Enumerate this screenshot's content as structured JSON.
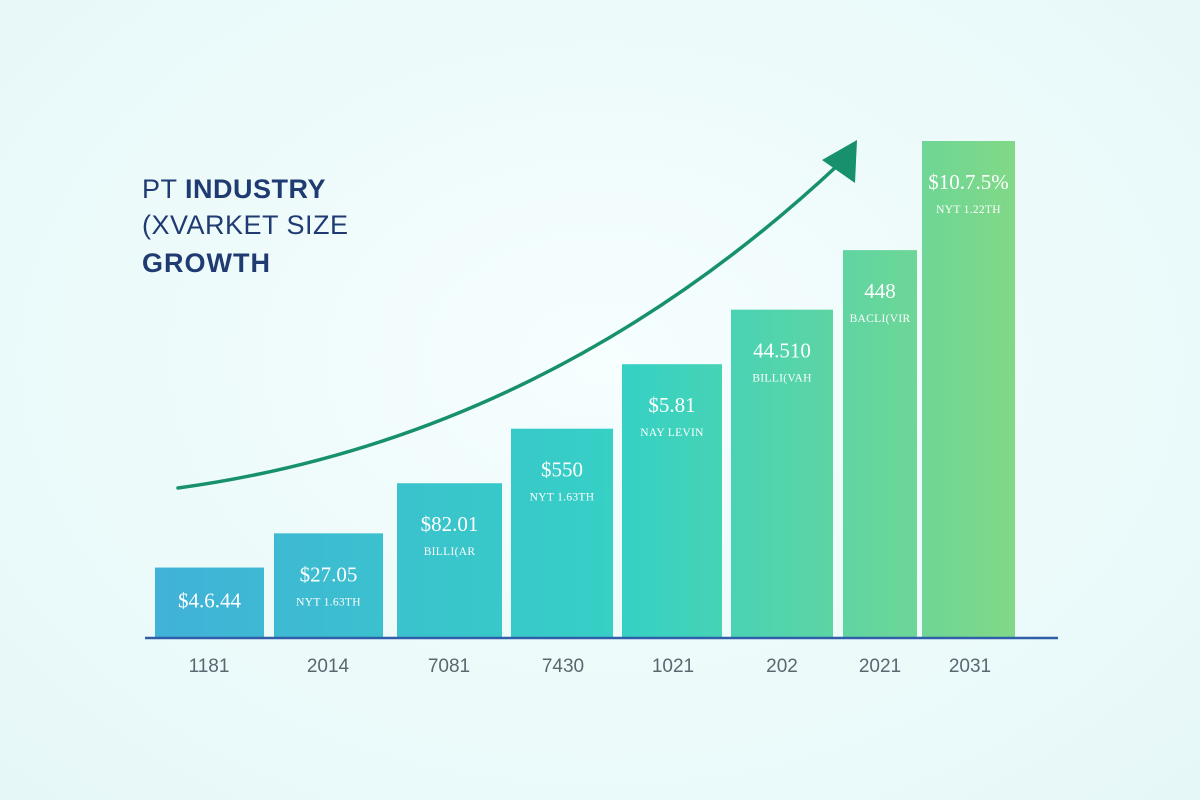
{
  "title": {
    "line1_prefix": "PT",
    "line1_bold": "INDUSTRY",
    "line2": "(XVARKET SIZE",
    "line3": "GROWTH"
  },
  "colors": {
    "title": "#1f3b72",
    "arrow": "#17906e",
    "baseline": "#2e5fa8",
    "bar_start": "#41b1d8",
    "bar_mid": "#35d1c4",
    "bar_end": "#82d886"
  },
  "chart_data": {
    "type": "bar",
    "categories": [
      "1181",
      "2014",
      "7081",
      "7430",
      "1021",
      "202",
      "2021",
      "2031"
    ],
    "values": [
      4.644,
      27.05,
      82.01,
      550,
      5.81,
      44.51,
      448,
      10.75
    ],
    "value_labels": [
      "$4.6.44",
      "$27.05",
      "$82.01",
      "$550",
      "$5.81",
      "44.510",
      "448",
      "$10.7.5%"
    ],
    "unit_labels": [
      "",
      "NYT 1.63TH",
      "BILLI(AR",
      "NYT 1.63TH",
      "NAY LEVIN",
      "BILLI(VAH",
      "BACLI(VIR",
      "NYT 1.22TH"
    ],
    "bar_heights_relative": [
      0.14,
      0.209,
      0.31,
      0.42,
      0.55,
      0.66,
      0.78,
      1.0
    ],
    "trend_arrow": true,
    "grid": false,
    "legend": "none"
  }
}
